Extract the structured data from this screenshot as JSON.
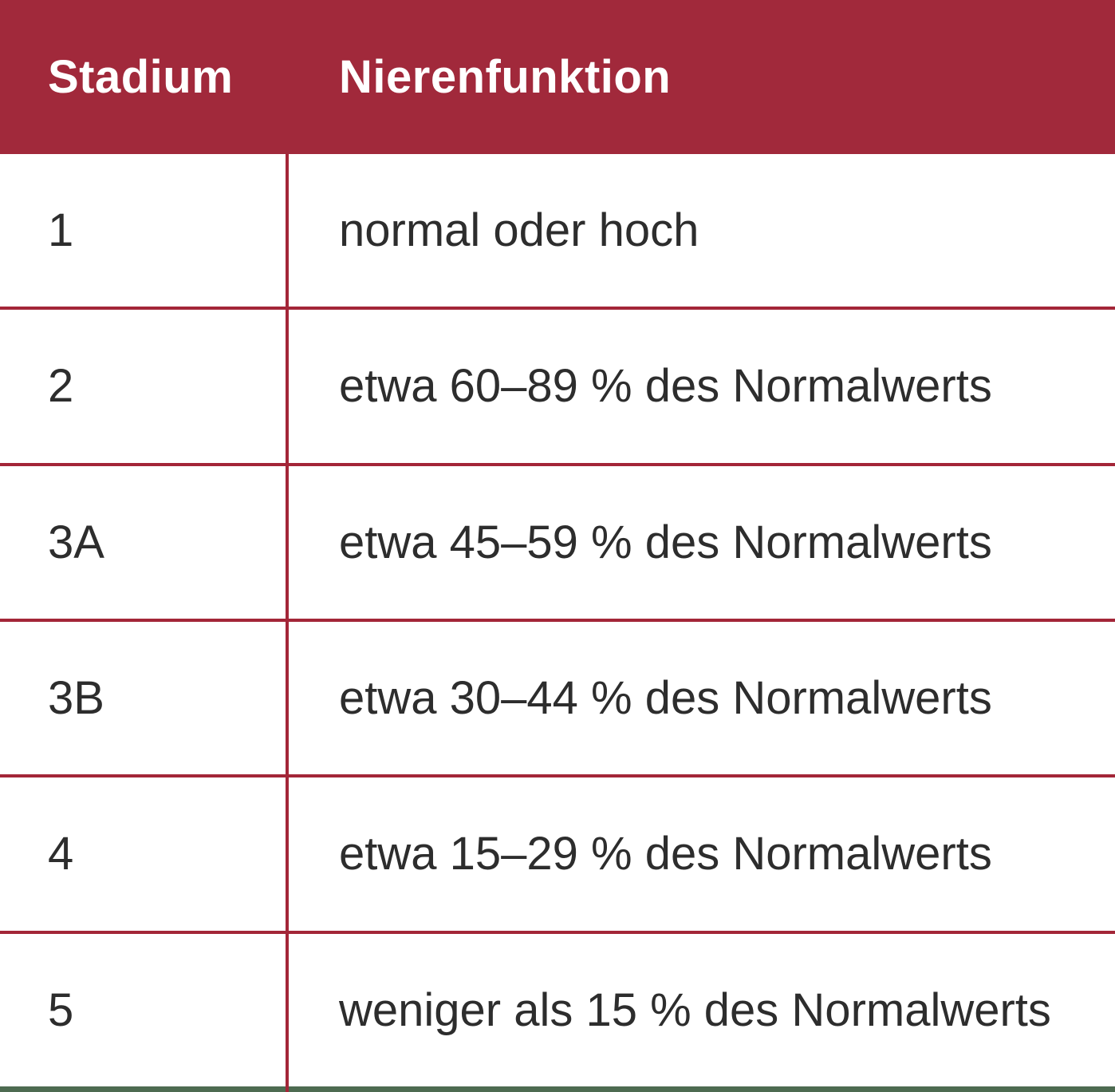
{
  "chart_data": {
    "type": "table",
    "title": "",
    "columns": [
      "Stadium",
      "Nierenfunktion"
    ],
    "rows": [
      [
        "1",
        "normal oder hoch"
      ],
      [
        "2",
        "etwa 60–89 % des Normalwerts"
      ],
      [
        "3A",
        "etwa 45–59 % des Normalwerts"
      ],
      [
        "3B",
        "etwa 30–44 % des Normalwerts"
      ],
      [
        "4",
        "etwa 15–29 % des Normalwerts"
      ],
      [
        "5",
        "weniger als 15 % des Normalwerts"
      ]
    ],
    "layout_hints": {
      "header_style": "solid dark-red band, white bold text",
      "grid": "red horizontal separators between rows, single red vertical divider between columns, dark-green accent bar at bottom edge"
    }
  },
  "colors": {
    "header_bg": "#a1293b",
    "header_text": "#ffffff",
    "row_bg": "#ffffff",
    "row_text": "#2d2d2d",
    "grid_line": "#a32638",
    "bottom_bar": "#4d6b51"
  }
}
